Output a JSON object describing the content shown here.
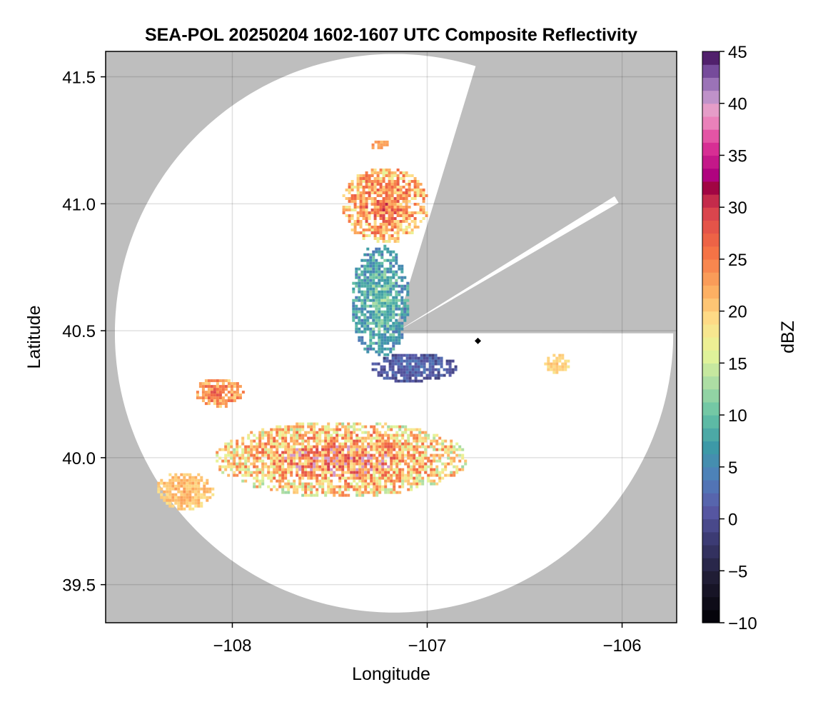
{
  "chart_data": {
    "type": "heatmap",
    "title": "SEA-POL 20250204 1602-1607 UTC Composite Reflectivity",
    "xlabel": "Longitude",
    "ylabel": "Latitude",
    "xlim": [
      -108.65,
      -105.72
    ],
    "ylim": [
      39.35,
      41.6
    ],
    "x_ticks": [
      -108,
      -107,
      -106
    ],
    "x_tick_labels": [
      "−108",
      "−107",
      "−106"
    ],
    "y_ticks": [
      39.5,
      40.0,
      40.5,
      41.0,
      41.5
    ],
    "y_tick_labels": [
      "39.5",
      "40.0",
      "40.5",
      "41.0",
      "41.5"
    ],
    "grid": true,
    "background_color": "#bebebe",
    "radar": {
      "center_lon": -107.17,
      "center_lat": 40.49,
      "radius_lat_deg": 1.1,
      "blocked_sectors_deg": [
        [
          17,
          59
        ],
        [
          59,
          90
        ]
      ],
      "blocked_note_color": "#bebebe"
    },
    "marker": {
      "lon": -106.74,
      "lat": 40.46,
      "shape": "diamond",
      "color": "#000000"
    },
    "colorbar": {
      "label": "dBZ",
      "min": -10,
      "max": 45,
      "step": 1.25,
      "ticks": [
        45,
        40,
        35,
        30,
        25,
        20,
        15,
        10,
        5,
        0,
        -5,
        -10
      ],
      "tick_labels": [
        "45",
        "40",
        "35",
        "30",
        "25",
        "20",
        "15",
        "10",
        "5",
        "0",
        "−5",
        "−10"
      ],
      "colormap": "Spectral_r + RdPu + Purples"
    },
    "echo_regions": [
      {
        "name": "southern band",
        "lon": [
          -108.1,
          -106.8
        ],
        "lat": [
          39.85,
          40.15
        ],
        "dbz_range": [
          12,
          32
        ],
        "max_dbz": 40
      },
      {
        "name": "southwest cell",
        "lon": [
          -108.2,
          -107.95
        ],
        "lat": [
          40.2,
          40.32
        ],
        "dbz_range": [
          18,
          30
        ]
      },
      {
        "name": "southwest fragments",
        "lon": [
          -108.4,
          -108.1
        ],
        "lat": [
          39.8,
          39.95
        ],
        "dbz_range": [
          18,
          24
        ]
      },
      {
        "name": "northern cluster",
        "lon": [
          -107.45,
          -107.0
        ],
        "lat": [
          40.85,
          41.15
        ],
        "dbz_range": [
          15,
          32
        ]
      },
      {
        "name": "central cluster",
        "lon": [
          -107.4,
          -107.1
        ],
        "lat": [
          40.4,
          40.85
        ],
        "dbz_range": [
          2,
          15
        ]
      },
      {
        "name": "isolated top cell",
        "lon": [
          -107.3,
          -107.2
        ],
        "lat": [
          41.22,
          41.26
        ],
        "dbz_range": [
          20,
          26
        ]
      },
      {
        "name": "east fragments",
        "lon": [
          -106.4,
          -106.28
        ],
        "lat": [
          40.33,
          40.42
        ],
        "dbz_range": [
          18,
          22
        ]
      },
      {
        "name": "near-radar weak echoes",
        "lon": [
          -107.3,
          -106.85
        ],
        "lat": [
          40.3,
          40.42
        ],
        "dbz_range": [
          -2,
          5
        ]
      }
    ]
  }
}
